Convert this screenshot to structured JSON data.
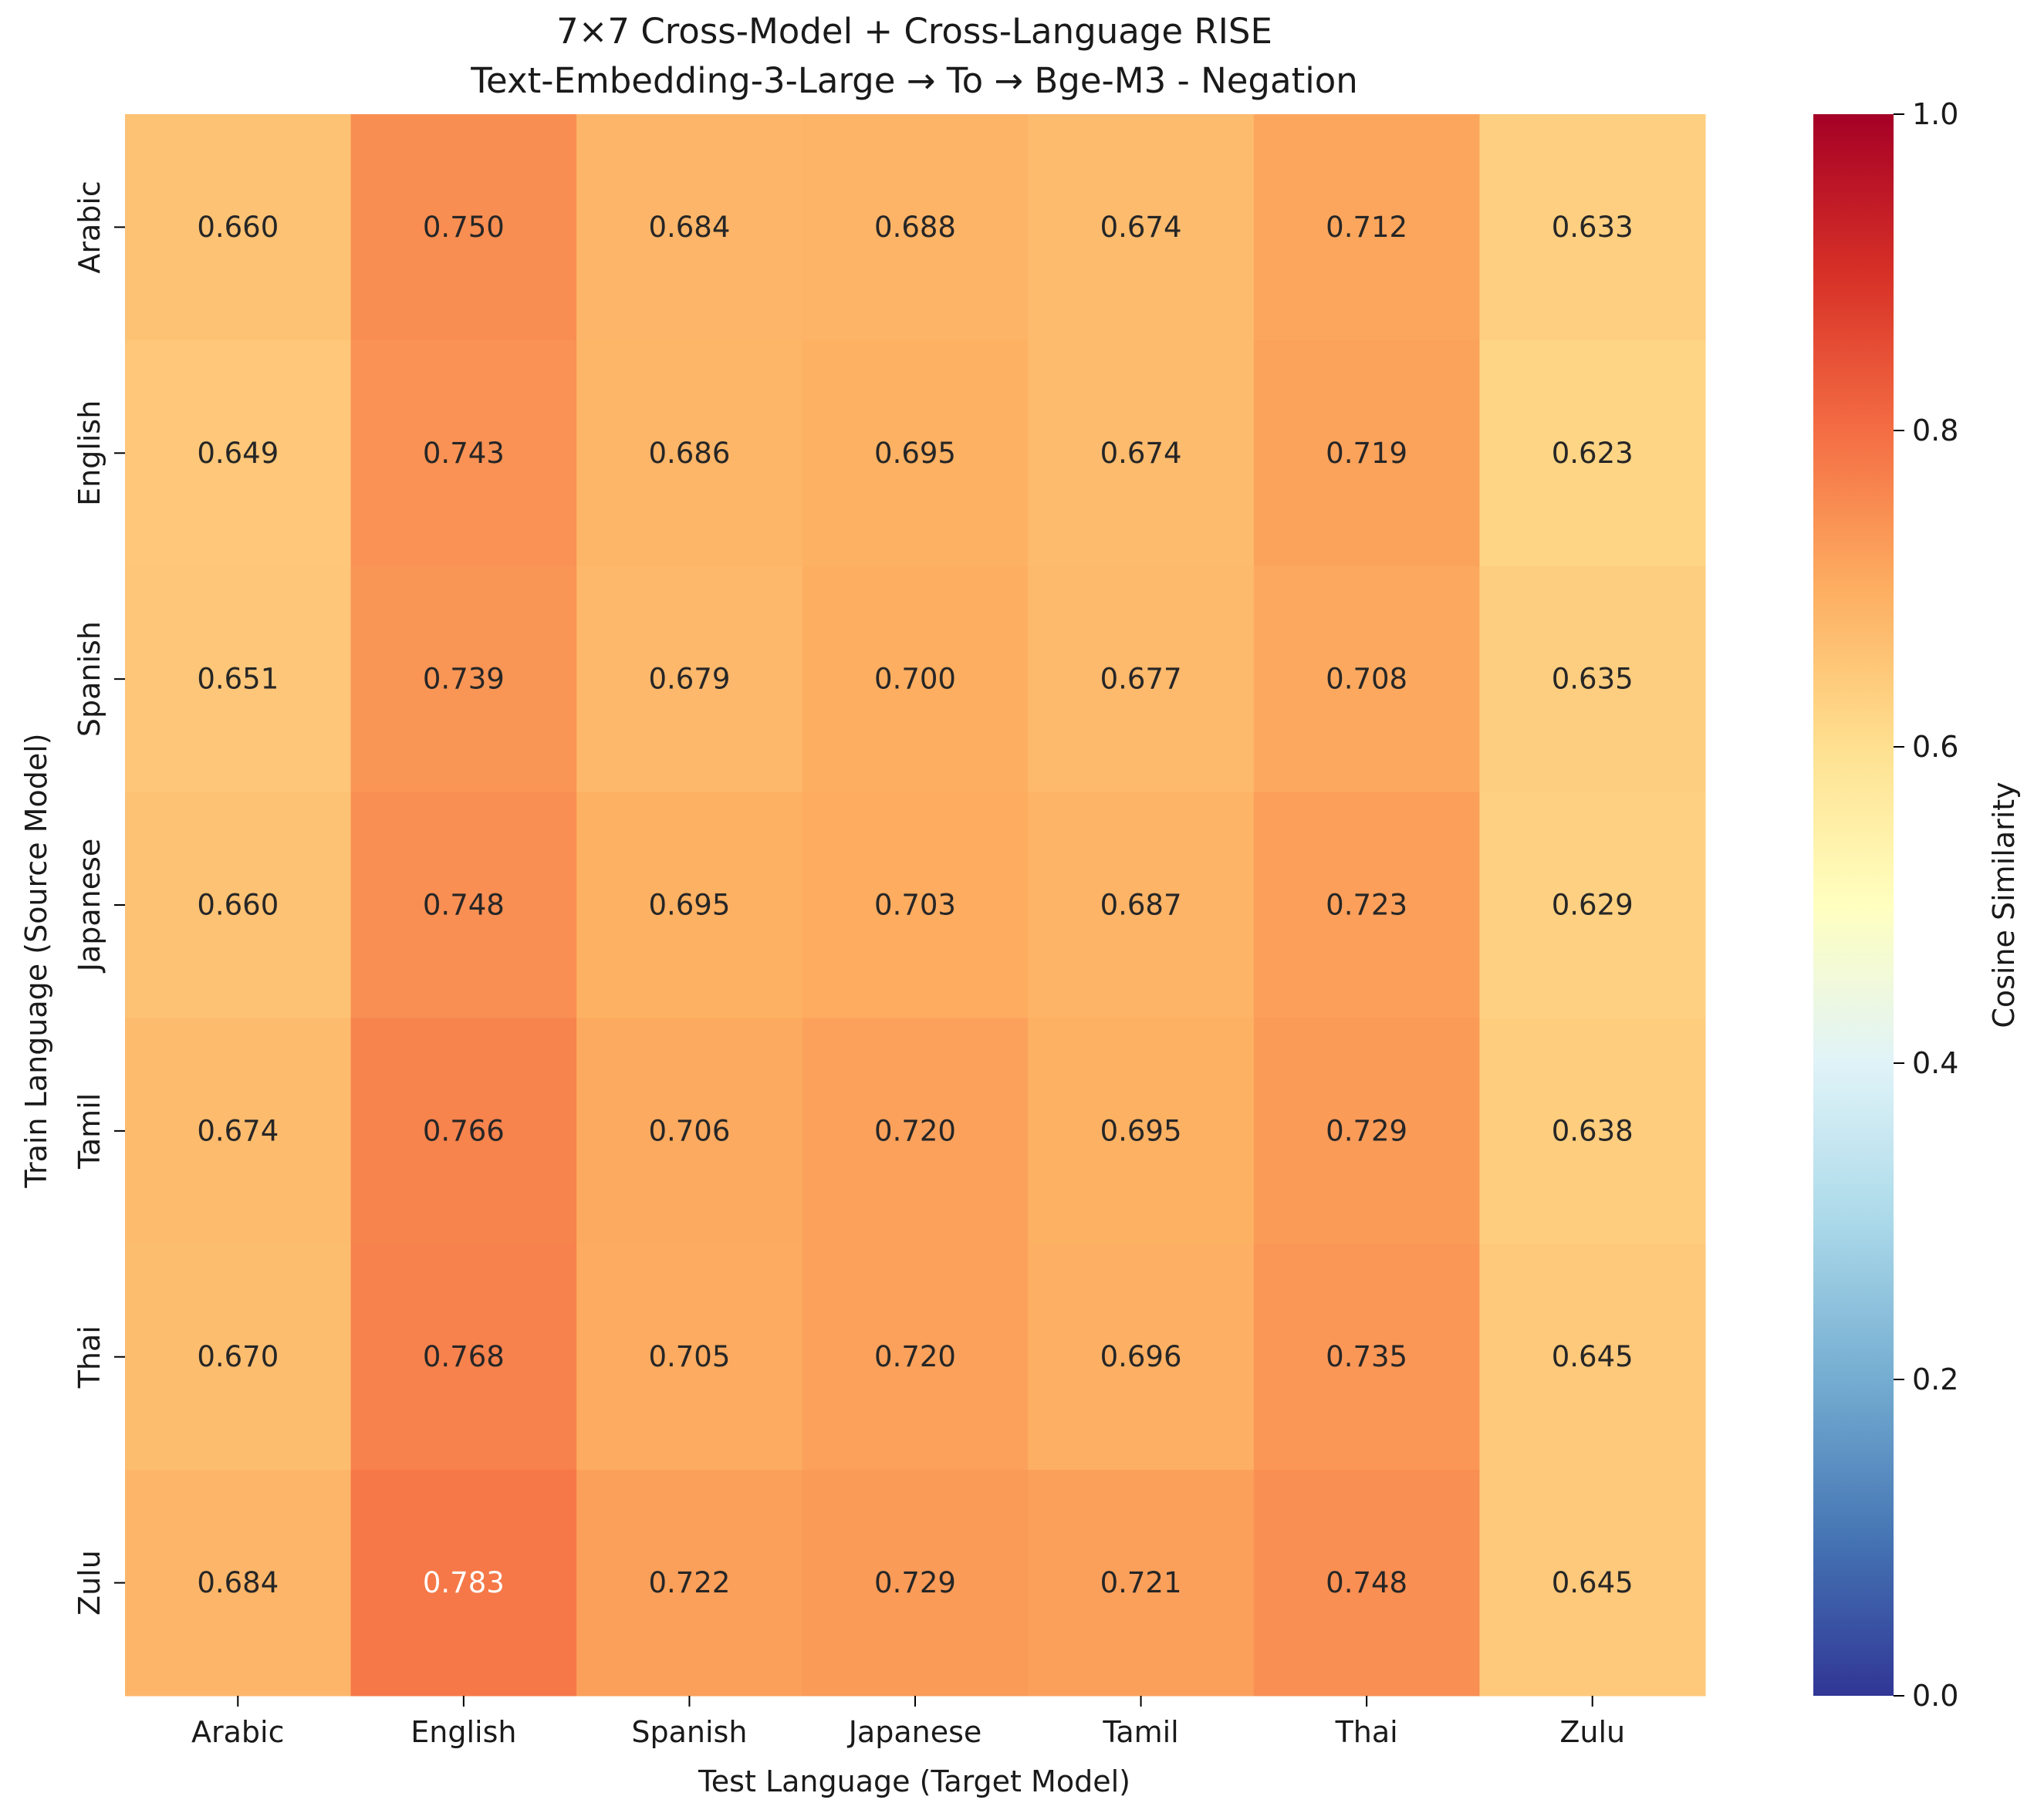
{
  "chart_data": {
    "type": "heatmap",
    "title_line1": "7×7 Cross-Model + Cross-Language RISE",
    "title_line2": "Text-Embedding-3-Large → To → Bge-M3 - Negation",
    "xlabel": "Test Language (Target Model)",
    "ylabel": "Train Language (Source Model)",
    "x_categories": [
      "Arabic",
      "English",
      "Spanish",
      "Japanese",
      "Tamil",
      "Thai",
      "Zulu"
    ],
    "y_categories": [
      "Arabic",
      "English",
      "Spanish",
      "Japanese",
      "Tamil",
      "Thai",
      "Zulu"
    ],
    "values": [
      [
        0.66,
        0.75,
        0.684,
        0.688,
        0.674,
        0.712,
        0.633
      ],
      [
        0.649,
        0.743,
        0.686,
        0.695,
        0.674,
        0.719,
        0.623
      ],
      [
        0.651,
        0.739,
        0.679,
        0.7,
        0.677,
        0.708,
        0.635
      ],
      [
        0.66,
        0.748,
        0.695,
        0.703,
        0.687,
        0.723,
        0.629
      ],
      [
        0.674,
        0.766,
        0.706,
        0.72,
        0.695,
        0.729,
        0.638
      ],
      [
        0.67,
        0.768,
        0.705,
        0.72,
        0.696,
        0.735,
        0.645
      ],
      [
        0.684,
        0.783,
        0.722,
        0.729,
        0.721,
        0.748,
        0.645
      ]
    ],
    "value_format_decimals": 3,
    "colormap": "RdYlBu_r",
    "vmin": 0.0,
    "vmax": 1.0,
    "colorbar": {
      "label": "Cosine Similarity",
      "ticks": [
        0.0,
        0.2,
        0.4,
        0.6,
        0.8,
        1.0
      ],
      "tick_labels": [
        "0.0",
        "0.2",
        "0.4",
        "0.6",
        "0.8",
        "1.0"
      ]
    }
  }
}
